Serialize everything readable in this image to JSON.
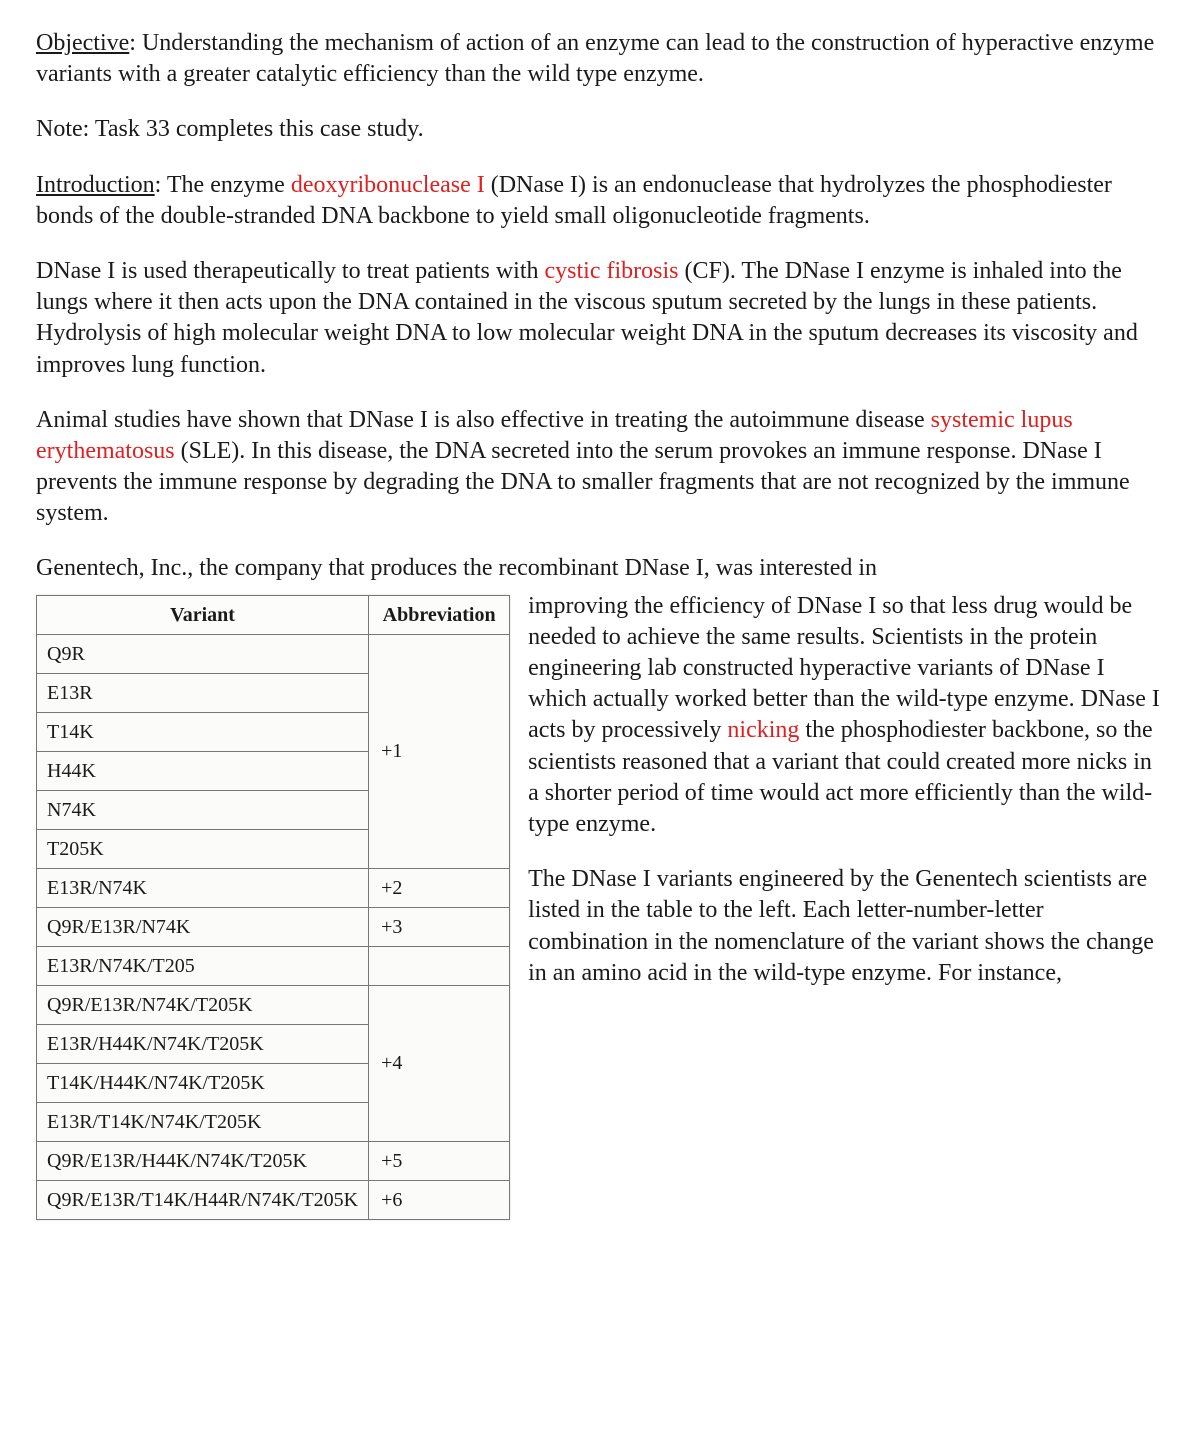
{
  "objective": {
    "label": "Objective",
    "text": ": Understanding the mechanism of action of an enzyme can lead to the construction of hyperactive enzyme variants with a greater catalytic efficiency than the wild type enzyme."
  },
  "note": "Note: Task 33 completes this case study.",
  "intro": {
    "label": "Introduction",
    "pre": ": The enzyme ",
    "link1": "deoxyribonuclease I",
    "post1": " (DNase I) is an endonuclease that hydrolyzes the phosphodiester bonds of the double-stranded DNA backbone to yield small oligonucleotide fragments."
  },
  "para_cf": {
    "pre": "DNase I is used therapeutically to treat patients with ",
    "link": "cystic fibrosis",
    "post": " (CF). The DNase I enzyme is inhaled into the lungs where it then acts upon the DNA contained in the viscous sputum secreted by the lungs in these patients. Hydrolysis of high molecular weight DNA to low molecular weight DNA in the sputum decreases its viscosity and improves lung function."
  },
  "para_sle": {
    "pre": "Animal studies have shown that DNase I is also effective in treating the autoimmune disease ",
    "link": "systemic lupus erythematosus",
    "post": " (SLE). In this disease, the DNA secreted into the serum provokes an immune response. DNase I prevents the immune response by degrading the DNA to smaller fragments that are not recognized by the immune system."
  },
  "lead_in": "Genentech, Inc., the company that produces the recombinant DNase I, was interested in",
  "para_gene": {
    "pre": "improving the efficiency of DNase I so that less drug would be needed to achieve the same results. Scientists in the protein engineering lab constructed hyperactive variants of DNase I which actually worked better than the wild-type enzyme. DNase I acts by processively ",
    "link": "nicking",
    "post": " the phosphodiester backbone, so the scientists reasoned that a variant that could created more nicks in a shorter period of time would act more efficiently than the wild-type enzyme."
  },
  "para_table": "The DNase I variants engineered by the Genentech scientists are listed in the table to the left. Each letter-number-letter combination in the nomenclature of the variant shows the change in an amino acid in the wild-type enzyme. For instance,",
  "table": {
    "headers": {
      "variant": "Variant",
      "abbr": "Abbreviation"
    },
    "groups": [
      {
        "variants": [
          "Q9R",
          "E13R",
          "T14K",
          "H44K",
          "N74K",
          "T205K"
        ],
        "abbr": "+1"
      },
      {
        "variants": [
          "E13R/N74K"
        ],
        "abbr": "+2"
      },
      {
        "variants": [
          "Q9R/E13R/N74K"
        ],
        "abbr": "+3"
      },
      {
        "variants": [
          "E13R/N74K/T205",
          "Q9R/E13R/N74K/T205K",
          "E13R/H44K/N74K/T205K",
          "T14K/H44K/N74K/T205K",
          "E13R/T14K/N74K/T205K"
        ],
        "abbr": "+4"
      },
      {
        "variants": [
          "Q9R/E13R/H44K/N74K/T205K"
        ],
        "abbr": "+5"
      },
      {
        "variants": [
          "Q9R/E13R/T14K/H44R/N74K/T205K"
        ],
        "abbr": "+6"
      }
    ],
    "abbr_empty_for_first_group_row": ""
  }
}
